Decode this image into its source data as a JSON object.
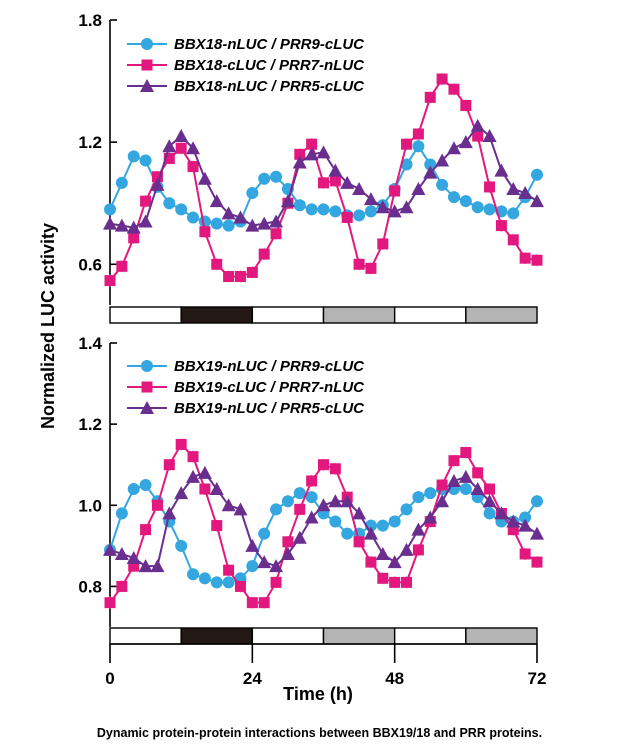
{
  "caption": "Dynamic protein-protein interactions between BBX19/18 and PRR proteins.",
  "colors": {
    "PRR9": "#34a6e0",
    "PRR7": "#e3187e",
    "PRR5": "#6a2f8e",
    "dark": "#231815",
    "grey": "#b4b4b4",
    "errorbar": "#9a9a9a"
  },
  "chart_data": [
    {
      "type": "line",
      "panel": "top",
      "ylabel": "Normalized LUC activity",
      "xlabel": "",
      "xlim": [
        0,
        72
      ],
      "ylim": [
        0.4,
        1.8
      ],
      "yticks": [
        0.6,
        1.2,
        1.8
      ],
      "yticklabels": [
        "0.6",
        "1.2",
        "1.8"
      ],
      "legend_position": "top-left",
      "light_bar": [
        "white",
        "dark",
        "white",
        "grey",
        "white",
        "grey"
      ],
      "series": [
        {
          "name": "BBX18-nLUC / PRR9-cLUC",
          "marker": "circle",
          "color": "#34a6e0",
          "x": [
            0,
            2,
            4,
            6,
            8,
            10,
            12,
            14,
            16,
            18,
            20,
            22,
            24,
            26,
            28,
            30,
            32,
            34,
            36,
            38,
            40,
            42,
            44,
            46,
            48,
            50,
            52,
            54,
            56,
            58,
            60,
            62,
            64,
            66,
            68,
            70,
            72
          ],
          "y": [
            0.87,
            1.0,
            1.13,
            1.11,
            0.98,
            0.9,
            0.87,
            0.83,
            0.81,
            0.8,
            0.79,
            0.81,
            0.95,
            1.02,
            1.03,
            0.97,
            0.89,
            0.87,
            0.87,
            0.86,
            0.84,
            0.84,
            0.86,
            0.89,
            0.97,
            1.09,
            1.18,
            1.09,
            0.99,
            0.93,
            0.91,
            0.88,
            0.87,
            0.86,
            0.85,
            0.93,
            1.04
          ]
        },
        {
          "name": "BBX18-cLUC / PRR7-nLUC",
          "marker": "square",
          "color": "#e3187e",
          "x": [
            0,
            2,
            4,
            6,
            8,
            10,
            12,
            14,
            16,
            18,
            20,
            22,
            24,
            26,
            28,
            30,
            32,
            34,
            36,
            38,
            40,
            42,
            44,
            46,
            48,
            50,
            52,
            54,
            56,
            58,
            60,
            62,
            64,
            66,
            68,
            70,
            72
          ],
          "y": [
            0.52,
            0.59,
            0.73,
            0.91,
            1.03,
            1.12,
            1.17,
            1.08,
            0.76,
            0.6,
            0.54,
            0.54,
            0.56,
            0.65,
            0.75,
            0.9,
            1.14,
            1.19,
            1.0,
            1.01,
            0.83,
            0.6,
            0.58,
            0.7,
            0.96,
            1.19,
            1.24,
            1.42,
            1.51,
            1.46,
            1.38,
            1.23,
            0.98,
            0.79,
            0.72,
            0.63,
            0.62
          ]
        },
        {
          "name": "BBX18-nLUC / PRR5-cLUC",
          "marker": "triangle",
          "color": "#6a2f8e",
          "x": [
            0,
            2,
            4,
            6,
            8,
            10,
            12,
            14,
            16,
            18,
            20,
            22,
            24,
            26,
            28,
            30,
            32,
            34,
            36,
            38,
            40,
            42,
            44,
            46,
            48,
            50,
            52,
            54,
            56,
            58,
            60,
            62,
            64,
            66,
            68,
            70,
            72
          ],
          "y": [
            0.8,
            0.79,
            0.78,
            0.81,
            0.99,
            1.18,
            1.23,
            1.17,
            1.02,
            0.91,
            0.85,
            0.83,
            0.79,
            0.8,
            0.81,
            0.91,
            1.1,
            1.14,
            1.15,
            1.06,
            1.0,
            0.97,
            0.92,
            0.88,
            0.86,
            0.88,
            0.97,
            1.05,
            1.11,
            1.17,
            1.2,
            1.28,
            1.23,
            1.06,
            0.97,
            0.95,
            0.91
          ]
        }
      ]
    },
    {
      "type": "line",
      "panel": "bottom",
      "ylabel": "Normalized LUC activity",
      "xlabel": "Time (h)",
      "xlim": [
        0,
        72
      ],
      "xticks": [
        0,
        24,
        48,
        72
      ],
      "ylim": [
        0.7,
        1.4
      ],
      "yticks": [
        0.8,
        1.0,
        1.2,
        1.4
      ],
      "yticklabels": [
        "0.8",
        "1.0",
        "1.2",
        "1.4"
      ],
      "legend_position": "top-left",
      "light_bar": [
        "white",
        "dark",
        "white",
        "grey",
        "white",
        "grey"
      ],
      "series": [
        {
          "name": "BBX19-nLUC / PRR9-cLUC",
          "marker": "circle",
          "color": "#34a6e0",
          "x": [
            0,
            2,
            4,
            6,
            8,
            10,
            12,
            14,
            16,
            18,
            20,
            22,
            24,
            26,
            28,
            30,
            32,
            34,
            36,
            38,
            40,
            42,
            44,
            46,
            48,
            50,
            52,
            54,
            56,
            58,
            60,
            62,
            64,
            66,
            68,
            70,
            72
          ],
          "y": [
            0.89,
            0.98,
            1.04,
            1.05,
            1.01,
            0.96,
            0.9,
            0.83,
            0.82,
            0.81,
            0.81,
            0.82,
            0.85,
            0.93,
            0.99,
            1.01,
            1.03,
            1.02,
            0.98,
            0.96,
            0.93,
            0.93,
            0.95,
            0.95,
            0.96,
            0.99,
            1.02,
            1.03,
            1.04,
            1.04,
            1.04,
            1.02,
            0.98,
            0.96,
            0.96,
            0.97,
            1.01
          ]
        },
        {
          "name": "BBX19-cLUC / PRR7-nLUC",
          "marker": "square",
          "color": "#e3187e",
          "x": [
            0,
            2,
            4,
            6,
            8,
            10,
            12,
            14,
            16,
            18,
            20,
            22,
            24,
            26,
            28,
            30,
            32,
            34,
            36,
            38,
            40,
            42,
            44,
            46,
            48,
            50,
            52,
            54,
            56,
            58,
            60,
            62,
            64,
            66,
            68,
            70,
            72
          ],
          "y": [
            0.76,
            0.8,
            0.85,
            0.94,
            1.0,
            1.1,
            1.15,
            1.12,
            1.04,
            0.95,
            0.84,
            0.8,
            0.76,
            0.76,
            0.81,
            0.91,
            0.99,
            1.06,
            1.1,
            1.09,
            1.02,
            0.91,
            0.86,
            0.82,
            0.81,
            0.81,
            0.89,
            0.96,
            1.05,
            1.11,
            1.13,
            1.08,
            1.04,
            0.98,
            0.94,
            0.88,
            0.86
          ]
        },
        {
          "name": "BBX19-nLUC / PRR5-cLUC",
          "marker": "triangle",
          "color": "#6a2f8e",
          "x": [
            0,
            2,
            4,
            6,
            8,
            10,
            12,
            14,
            16,
            18,
            20,
            22,
            24,
            26,
            28,
            30,
            32,
            34,
            36,
            38,
            40,
            42,
            44,
            46,
            48,
            50,
            52,
            54,
            56,
            58,
            60,
            62,
            64,
            66,
            68,
            70,
            72
          ],
          "y": [
            0.89,
            0.88,
            0.87,
            0.85,
            0.85,
            0.98,
            1.03,
            1.07,
            1.08,
            1.04,
            1.0,
            0.99,
            0.9,
            0.86,
            0.85,
            0.88,
            0.92,
            0.97,
            1.0,
            1.01,
            1.01,
            0.98,
            0.93,
            0.88,
            0.86,
            0.89,
            0.94,
            0.97,
            1.01,
            1.06,
            1.07,
            1.04,
            1.01,
            0.98,
            0.96,
            0.95,
            0.93
          ]
        }
      ]
    }
  ]
}
